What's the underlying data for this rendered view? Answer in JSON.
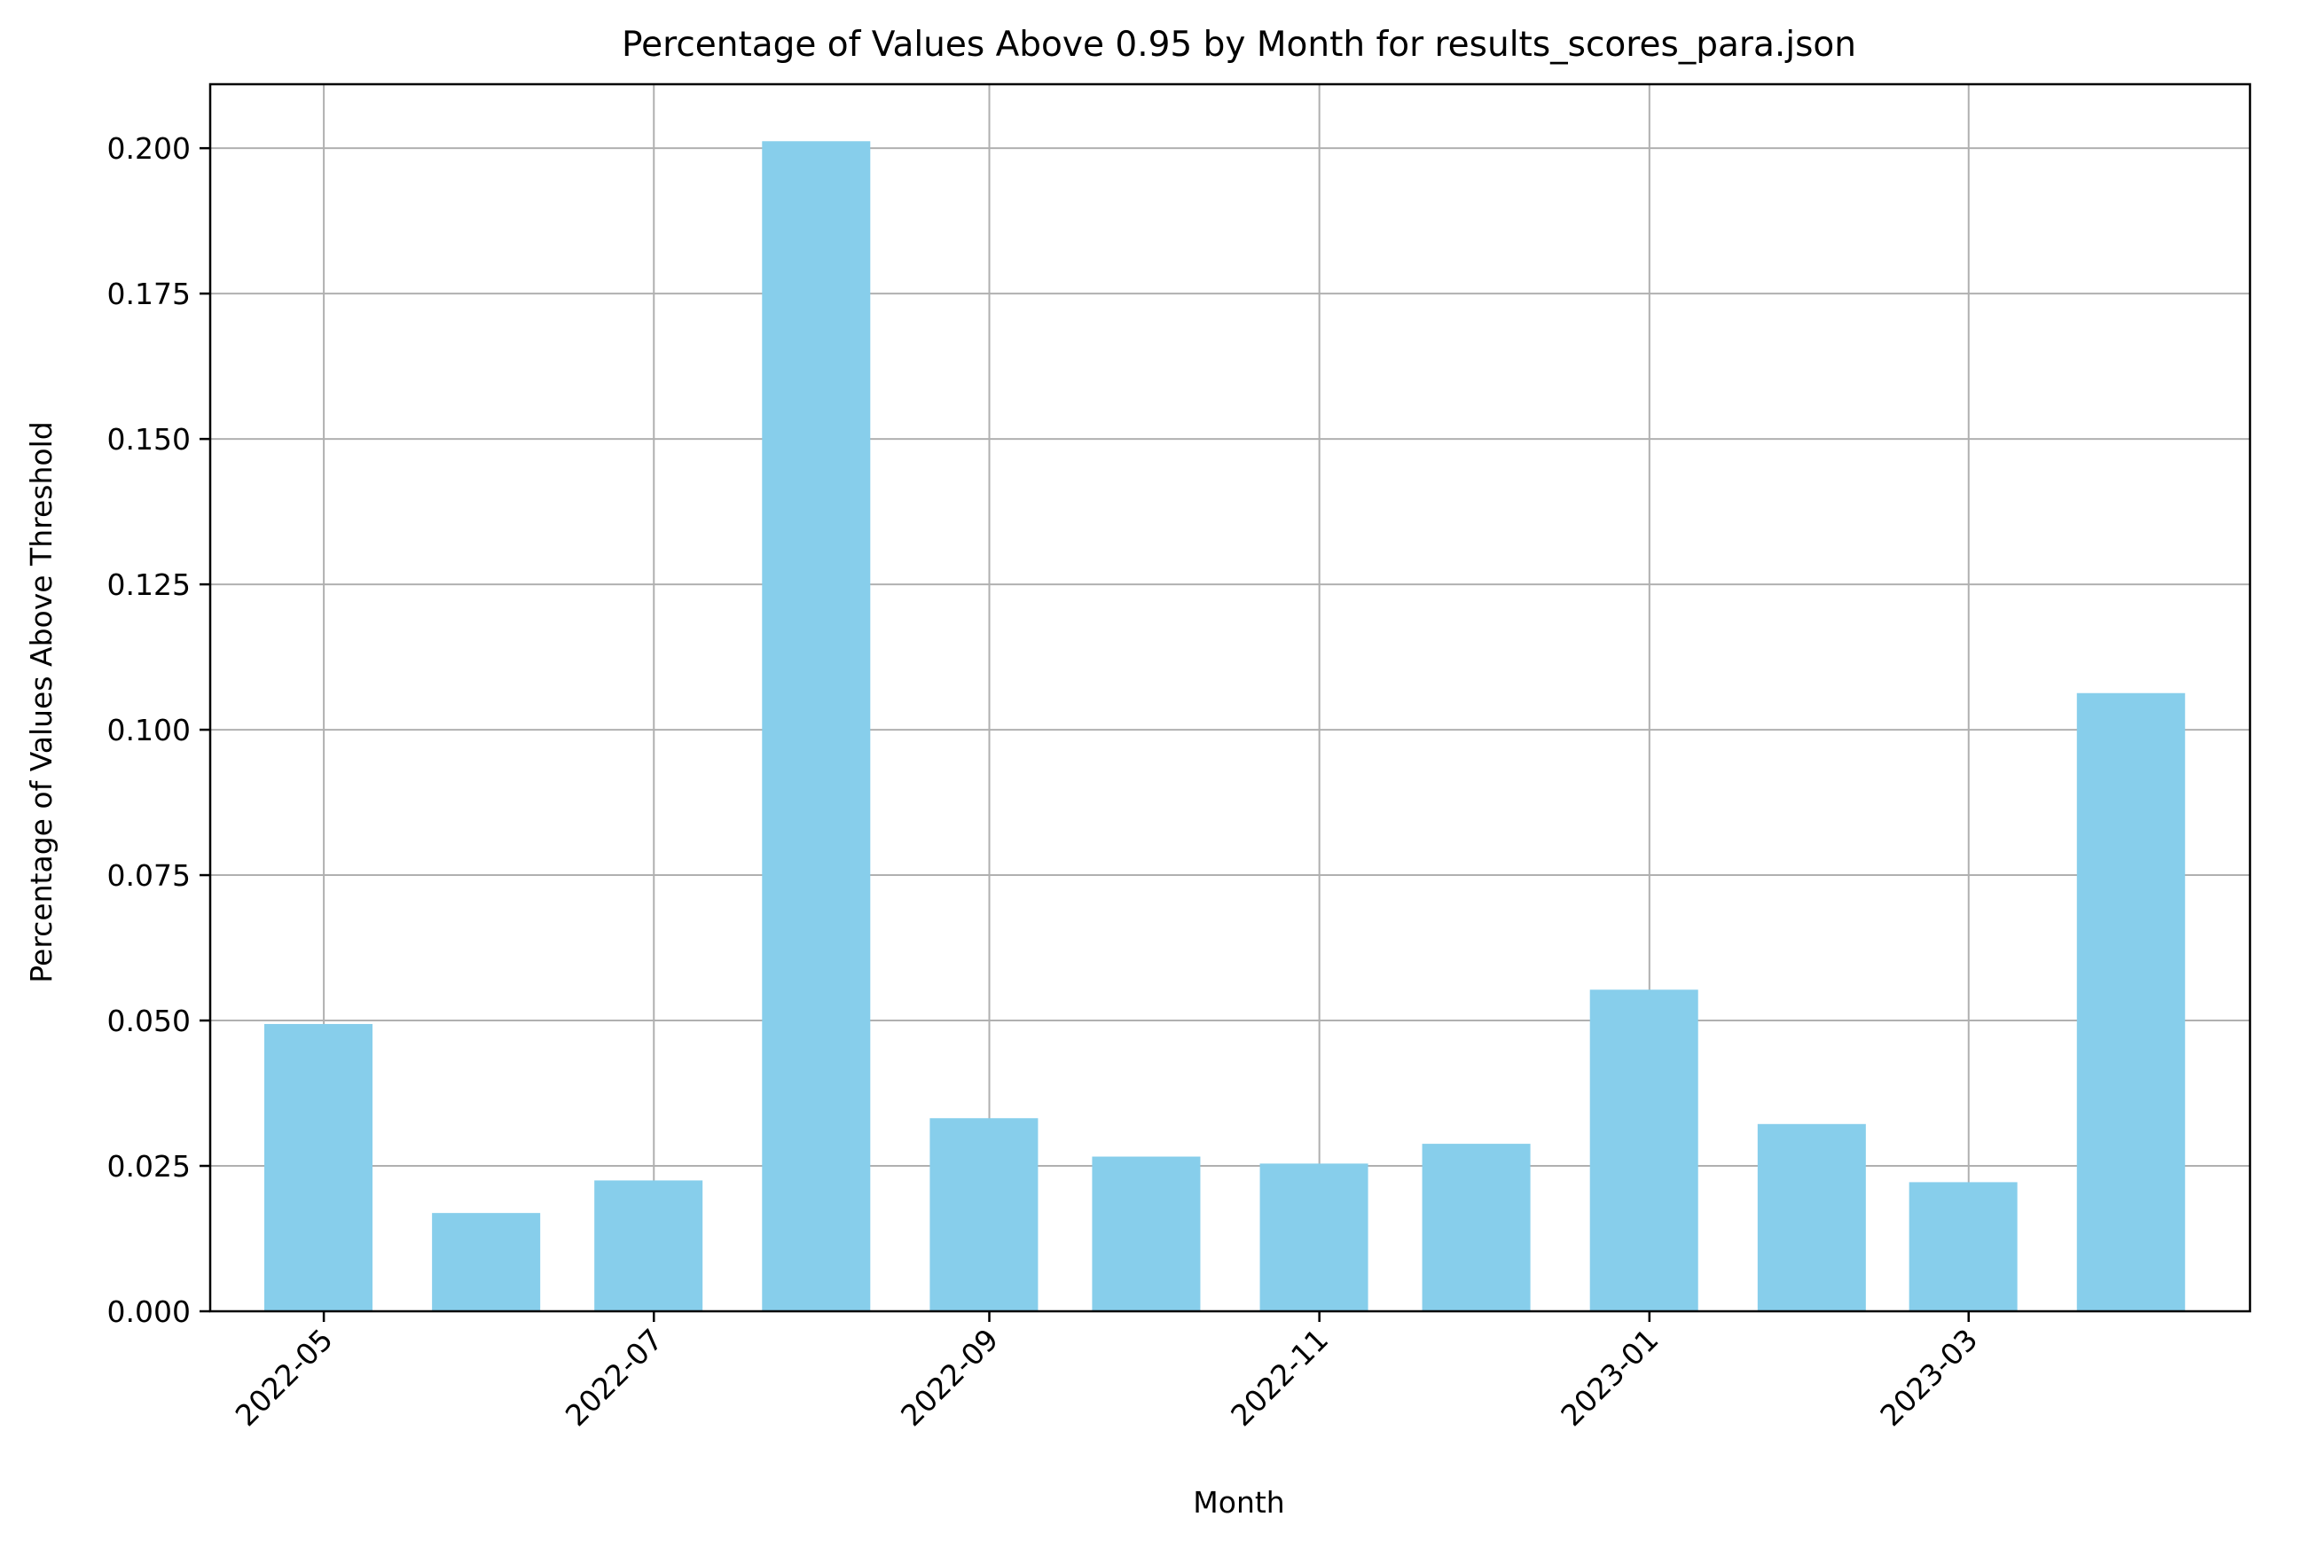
{
  "chart_data": {
    "type": "bar",
    "title": "Percentage of Values Above 0.95 by Month for results_scores_para.json",
    "xlabel": "Month",
    "ylabel": "Percentage of Values Above Threshold",
    "x": [
      "2022-04-30",
      "2022-05-31",
      "2022-06-30",
      "2022-07-31",
      "2022-08-31",
      "2022-09-30",
      "2022-10-31",
      "2022-11-30",
      "2022-12-31",
      "2023-01-31",
      "2023-02-28",
      "2023-03-31"
    ],
    "values": [
      0.0494,
      0.0169,
      0.0225,
      0.2012,
      0.0332,
      0.0266,
      0.0254,
      0.0288,
      0.0553,
      0.0322,
      0.0222,
      0.1063
    ],
    "x_ticks": [
      {
        "date": "2022-05-01",
        "label": "2022-05"
      },
      {
        "date": "2022-07-01",
        "label": "2022-07"
      },
      {
        "date": "2022-09-01",
        "label": "2022-09"
      },
      {
        "date": "2022-11-01",
        "label": "2022-11"
      },
      {
        "date": "2023-01-01",
        "label": "2023-01"
      },
      {
        "date": "2023-03-01",
        "label": "2023-03"
      }
    ],
    "xlim": [
      "2022-04-10",
      "2023-04-22"
    ],
    "ylim": [
      0,
      0.211
    ],
    "y_ticks": [
      0.0,
      0.025,
      0.05,
      0.075,
      0.1,
      0.125,
      0.15,
      0.175,
      0.2
    ],
    "y_tick_labels": [
      "0.000",
      "0.025",
      "0.050",
      "0.075",
      "0.100",
      "0.125",
      "0.150",
      "0.175",
      "0.200"
    ],
    "bar_color": "#87ceeb",
    "grid": true,
    "legend": "none"
  }
}
